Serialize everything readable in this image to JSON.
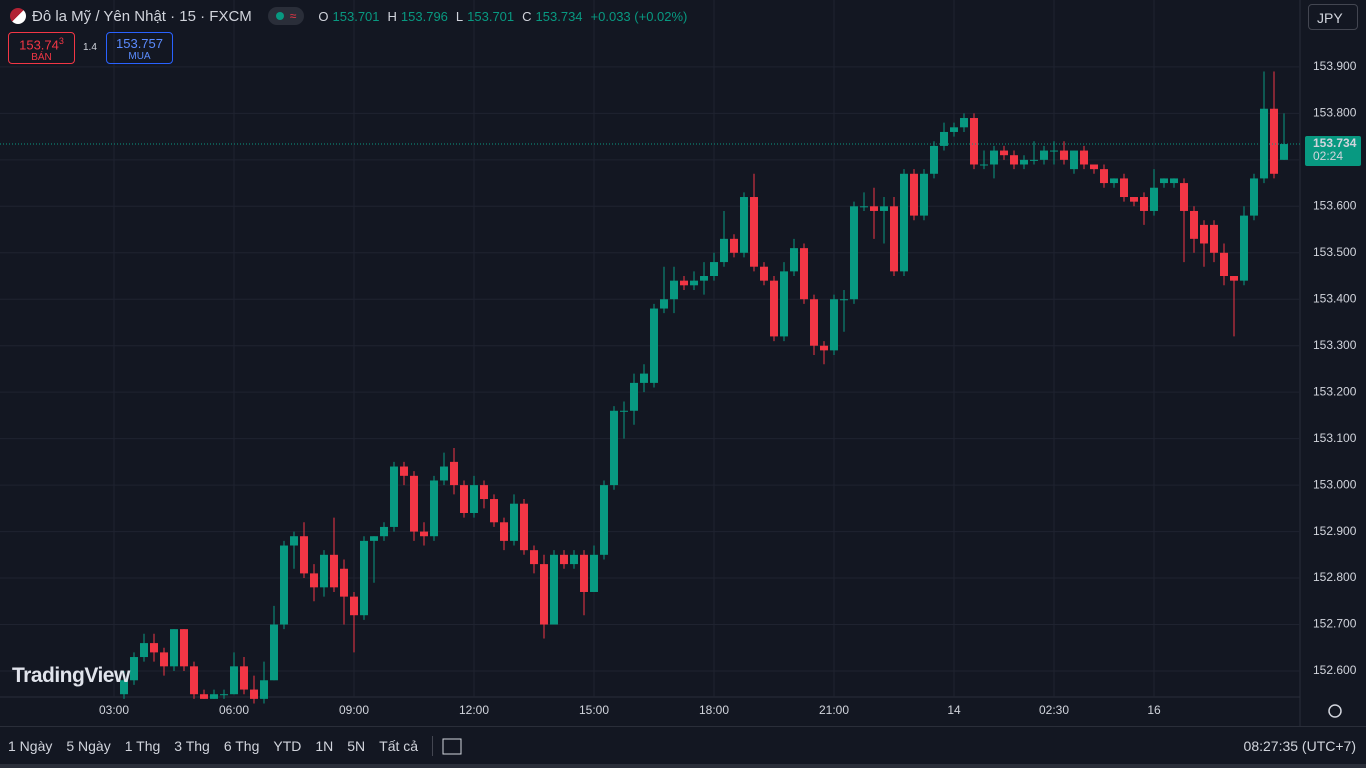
{
  "header": {
    "symbol": "Đô la Mỹ / Yên Nhật · 15 · FXCM",
    "open_prefix": "O",
    "open": "153.701",
    "high_prefix": "H",
    "high": "153.796",
    "low_prefix": "L",
    "low": "153.701",
    "close_prefix": "C",
    "close": "153.734",
    "change": "+0.033 (+0.02%)",
    "currency": "JPY"
  },
  "trade": {
    "sell_price": "153.74",
    "sell_pip": "3",
    "sell_label": "BÁN",
    "spread": "1.4",
    "buy_price": "153.757",
    "buy_label": "MUA"
  },
  "watermark": "TradingView",
  "toolbar": {
    "ranges": [
      "1 Ngày",
      "5 Ngày",
      "1 Thg",
      "3 Thg",
      "6 Thg",
      "YTD",
      "1N",
      "5N",
      "Tất cả"
    ],
    "clock": "08:27:35 (UTC+7)"
  },
  "chart_data": {
    "type": "candlestick",
    "up_color": "#089981",
    "down_color": "#f23645",
    "grid": true,
    "countdown": "02:24",
    "categories": [
      "03:00",
      null,
      null,
      null,
      null,
      null,
      null,
      null,
      null,
      null,
      null,
      null,
      "06:00",
      null,
      null,
      null,
      null,
      null,
      null,
      null,
      null,
      null,
      null,
      null,
      "09:00",
      null,
      null,
      null,
      null,
      null,
      null,
      null,
      null,
      null,
      null,
      null,
      "12:00",
      null,
      null,
      null,
      null,
      null,
      null,
      null,
      null,
      null,
      null,
      null,
      "15:00",
      null,
      null,
      null,
      null,
      null,
      null,
      null,
      null,
      null,
      null,
      null,
      "18:00",
      null,
      null,
      null,
      null,
      null,
      null,
      null,
      null,
      null,
      null,
      null,
      "21:00",
      null,
      null,
      null,
      null,
      null,
      null,
      null,
      null,
      null,
      null,
      null,
      "14",
      null,
      null,
      null,
      null,
      null,
      null,
      null,
      null,
      null,
      "02:30",
      null,
      null,
      null,
      null,
      null,
      null,
      null,
      null,
      null,
      "16",
      null,
      null,
      null,
      null,
      null,
      null,
      null,
      null,
      null,
      null,
      null,
      null,
      null
    ],
    "open": [
      null,
      152.55,
      152.58,
      152.63,
      152.66,
      152.64,
      152.61,
      152.69,
      152.61,
      152.55,
      152.54,
      152.55,
      152.55,
      152.61,
      152.56,
      152.54,
      152.58,
      152.7,
      152.87,
      152.89,
      152.81,
      152.78,
      152.85,
      152.82,
      152.76,
      152.72,
      152.88,
      152.89,
      152.91,
      153.04,
      153.02,
      152.9,
      152.89,
      153.01,
      153.05,
      153.0,
      152.94,
      153.0,
      152.97,
      152.92,
      152.88,
      152.96,
      152.86,
      152.83,
      152.7,
      152.85,
      152.83,
      152.85,
      152.77,
      152.85,
      153.0,
      153.16,
      153.16,
      153.22,
      153.22,
      153.38,
      153.4,
      153.44,
      153.43,
      153.44,
      153.45,
      153.48,
      153.53,
      153.5,
      153.62,
      153.47,
      153.44,
      153.32,
      153.46,
      153.51,
      153.4,
      153.3,
      153.29,
      153.4,
      153.4,
      153.6,
      153.6,
      153.59,
      153.6,
      153.46,
      153.67,
      153.58,
      153.67,
      153.73,
      153.76,
      153.77,
      153.79,
      153.69,
      153.69,
      153.72,
      153.71,
      153.69,
      153.7,
      153.7,
      153.72,
      153.72,
      153.68,
      153.72,
      153.69,
      153.68,
      153.65,
      153.66,
      153.62,
      153.62,
      153.59,
      153.65,
      153.65,
      153.65,
      153.59,
      153.56,
      153.56,
      153.5,
      153.45,
      153.44,
      153.58,
      153.66,
      153.81,
      153.7
    ],
    "high": [
      null,
      152.6,
      152.64,
      152.68,
      152.68,
      152.65,
      152.69,
      152.69,
      152.62,
      152.56,
      152.56,
      152.56,
      152.64,
      152.63,
      152.59,
      152.62,
      152.74,
      152.88,
      152.9,
      152.92,
      152.83,
      152.86,
      152.93,
      152.84,
      152.77,
      152.89,
      152.89,
      152.92,
      153.05,
      153.05,
      153.03,
      152.92,
      153.02,
      153.07,
      153.08,
      153.01,
      153.02,
      153.01,
      152.98,
      152.93,
      152.98,
      152.97,
      152.87,
      152.85,
      152.86,
      152.86,
      152.86,
      152.86,
      152.87,
      153.01,
      153.17,
      153.18,
      153.24,
      153.26,
      153.39,
      153.47,
      153.47,
      153.45,
      153.46,
      153.48,
      153.5,
      153.59,
      153.54,
      153.63,
      153.67,
      153.48,
      153.45,
      153.48,
      153.53,
      153.52,
      153.41,
      153.31,
      153.41,
      153.42,
      153.61,
      153.63,
      153.64,
      153.62,
      153.62,
      153.68,
      153.68,
      153.68,
      153.74,
      153.78,
      153.78,
      153.8,
      153.8,
      153.72,
      153.73,
      153.73,
      153.72,
      153.71,
      153.74,
      153.73,
      153.74,
      153.74,
      153.72,
      153.73,
      153.69,
      153.69,
      153.66,
      153.67,
      153.62,
      153.63,
      153.68,
      153.66,
      153.66,
      153.66,
      153.6,
      153.57,
      153.57,
      153.52,
      153.45,
      153.6,
      153.67,
      153.89,
      153.89,
      153.8
    ],
    "low": [
      null,
      152.54,
      152.57,
      152.62,
      152.62,
      152.59,
      152.6,
      152.6,
      152.54,
      152.54,
      152.54,
      152.54,
      152.55,
      152.55,
      152.53,
      152.53,
      152.58,
      152.69,
      152.82,
      152.8,
      152.75,
      152.76,
      152.77,
      152.7,
      152.64,
      152.71,
      152.79,
      152.88,
      152.9,
      153.0,
      152.88,
      152.87,
      152.88,
      153.0,
      152.98,
      152.93,
      152.93,
      152.95,
      152.91,
      152.86,
      152.87,
      152.85,
      152.81,
      152.67,
      152.7,
      152.82,
      152.82,
      152.72,
      152.77,
      152.84,
      152.99,
      153.1,
      153.13,
      153.2,
      153.21,
      153.37,
      153.37,
      153.42,
      153.42,
      153.41,
      153.44,
      153.47,
      153.49,
      153.49,
      153.46,
      153.43,
      153.31,
      153.31,
      153.45,
      153.39,
      153.28,
      153.26,
      153.28,
      153.33,
      153.39,
      153.59,
      153.53,
      153.52,
      153.45,
      153.45,
      153.57,
      153.57,
      153.66,
      153.72,
      153.75,
      153.76,
      153.68,
      153.68,
      153.66,
      153.7,
      153.68,
      153.68,
      153.69,
      153.69,
      153.69,
      153.69,
      153.67,
      153.68,
      153.67,
      153.64,
      153.64,
      153.61,
      153.6,
      153.56,
      153.58,
      153.64,
      153.64,
      153.48,
      153.5,
      153.47,
      153.48,
      153.43,
      153.32,
      153.43,
      153.57,
      153.65,
      153.66,
      153.7
    ],
    "close": [
      null,
      152.58,
      152.63,
      152.66,
      152.64,
      152.61,
      152.69,
      152.61,
      152.55,
      152.54,
      152.55,
      152.55,
      152.61,
      152.56,
      152.54,
      152.58,
      152.7,
      152.87,
      152.89,
      152.81,
      152.78,
      152.85,
      152.78,
      152.76,
      152.72,
      152.88,
      152.89,
      152.91,
      153.04,
      153.02,
      152.9,
      152.89,
      153.01,
      153.04,
      153.0,
      152.94,
      153.0,
      152.97,
      152.92,
      152.88,
      152.96,
      152.86,
      152.83,
      152.7,
      152.85,
      152.83,
      152.85,
      152.77,
      152.85,
      153.0,
      153.16,
      153.16,
      153.22,
      153.24,
      153.38,
      153.4,
      153.44,
      153.43,
      153.44,
      153.45,
      153.48,
      153.53,
      153.5,
      153.62,
      153.47,
      153.44,
      153.32,
      153.46,
      153.51,
      153.4,
      153.3,
      153.29,
      153.4,
      153.4,
      153.6,
      153.6,
      153.59,
      153.6,
      153.46,
      153.67,
      153.58,
      153.67,
      153.73,
      153.76,
      153.77,
      153.79,
      153.69,
      153.69,
      153.72,
      153.71,
      153.69,
      153.7,
      153.7,
      153.72,
      153.72,
      153.7,
      153.72,
      153.69,
      153.68,
      153.65,
      153.66,
      153.62,
      153.61,
      153.59,
      153.64,
      153.66,
      153.66,
      153.59,
      153.53,
      153.52,
      153.5,
      153.45,
      153.44,
      153.58,
      153.66,
      153.81,
      153.67,
      153.734
    ],
    "ylim": [
      152.544,
      154.044
    ],
    "yticks": [
      {
        "value": 152.6,
        "label": "152.600"
      },
      {
        "value": 152.7,
        "label": "152.700"
      },
      {
        "value": 152.8,
        "label": "152.800"
      },
      {
        "value": 152.9,
        "label": "152.900"
      },
      {
        "value": 153.0,
        "label": "153.000"
      },
      {
        "value": 153.1,
        "label": "153.100"
      },
      {
        "value": 153.2,
        "label": "153.200"
      },
      {
        "value": 153.3,
        "label": "153.300"
      },
      {
        "value": 153.4,
        "label": "153.400"
      },
      {
        "value": 153.5,
        "label": "153.500"
      },
      {
        "value": 153.6,
        "label": "153.600"
      },
      {
        "value": 153.7,
        "label": "153.700"
      },
      {
        "value": 153.8,
        "label": "153.800"
      },
      {
        "value": 153.9,
        "label": "153.900"
      }
    ]
  }
}
